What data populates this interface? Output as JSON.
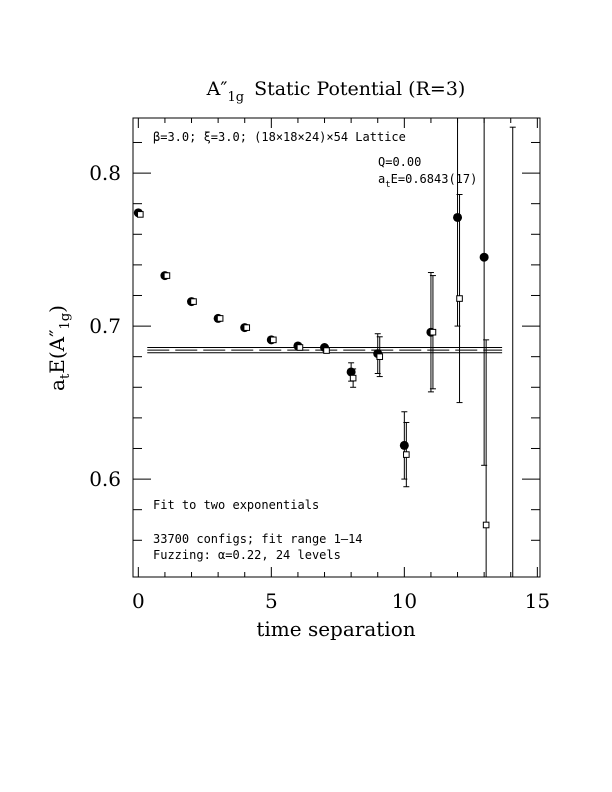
{
  "chart_data": {
    "type": "scatter",
    "title": "A″",
    "title_sub": "1g",
    "title_rest": "Static Potential (R=3)",
    "xlabel": "time separation",
    "ylabel_prefix": "a",
    "ylabel_t": "t",
    "ylabel_main": "E(A″",
    "ylabel_sub": "1g",
    "ylabel_close": ")",
    "xlim": [
      -0.2,
      15.1
    ],
    "ylim": [
      0.536,
      0.836
    ],
    "xticks": [
      0,
      5,
      10,
      15
    ],
    "xtick_labels": [
      "0",
      "5",
      "10",
      "15"
    ],
    "yticks": [
      0.6,
      0.7,
      0.8
    ],
    "ytick_labels": [
      "0.6",
      "0.7",
      "0.8"
    ],
    "lattice_line": "β=3.0; ξ=3.0; (18×18×24)×54 Lattice",
    "q_line": "Q=0.00",
    "ae_line_prefix": "a",
    "ae_line_t": "t",
    "ae_line_rest": "E=0.6843(17)",
    "fit_note": "Fit to two exponentials",
    "configs_note": "33700 configs; fit range 1–14",
    "fuzzing_note": "Fuzzing: α=0.22, 24 levels",
    "fit": {
      "x_range": [
        0.9,
        13.6
      ],
      "value": 0.6843,
      "upper": 0.686,
      "lower": 0.6826
    },
    "series": [
      {
        "marker": "filled-circle",
        "points": [
          {
            "x": 0,
            "y": 0.774,
            "err": 0.001
          },
          {
            "x": 1,
            "y": 0.733,
            "err": 0.001
          },
          {
            "x": 2,
            "y": 0.716,
            "err": 0.001
          },
          {
            "x": 3,
            "y": 0.705,
            "err": 0.001
          },
          {
            "x": 4,
            "y": 0.699,
            "err": 0.001
          },
          {
            "x": 5,
            "y": 0.691,
            "err": 0.001
          },
          {
            "x": 6,
            "y": 0.687,
            "err": 0.002
          },
          {
            "x": 7,
            "y": 0.686,
            "err": 0.003
          },
          {
            "x": 8,
            "y": 0.67,
            "err": 0.006
          },
          {
            "x": 9,
            "y": 0.682,
            "err": 0.013
          },
          {
            "x": 10,
            "y": 0.622,
            "err": 0.022
          },
          {
            "x": 11,
            "y": 0.696,
            "err": 0.039
          },
          {
            "x": 12,
            "y": 0.771,
            "err": 0.071
          },
          {
            "x": 13,
            "y": 0.745,
            "err": 0.136
          }
        ]
      },
      {
        "marker": "open-square",
        "points": [
          {
            "x": 0,
            "y": 0.773,
            "err": 0.001
          },
          {
            "x": 1,
            "y": 0.733,
            "err": 0.001
          },
          {
            "x": 2,
            "y": 0.716,
            "err": 0.001
          },
          {
            "x": 3,
            "y": 0.705,
            "err": 0.001
          },
          {
            "x": 4,
            "y": 0.699,
            "err": 0.001
          },
          {
            "x": 5,
            "y": 0.691,
            "err": 0.001
          },
          {
            "x": 6,
            "y": 0.686,
            "err": 0.002
          },
          {
            "x": 7,
            "y": 0.684,
            "err": 0.003
          },
          {
            "x": 8,
            "y": 0.666,
            "err": 0.006
          },
          {
            "x": 9,
            "y": 0.68,
            "err": 0.013
          },
          {
            "x": 10,
            "y": 0.616,
            "err": 0.021
          },
          {
            "x": 11,
            "y": 0.696,
            "err": 0.037
          },
          {
            "x": 12,
            "y": 0.718,
            "err": 0.068
          },
          {
            "x": 13,
            "y": 0.57,
            "err": 0.121
          },
          {
            "x": 14,
            "y": 0.57,
            "err": 0.26
          }
        ]
      }
    ]
  }
}
